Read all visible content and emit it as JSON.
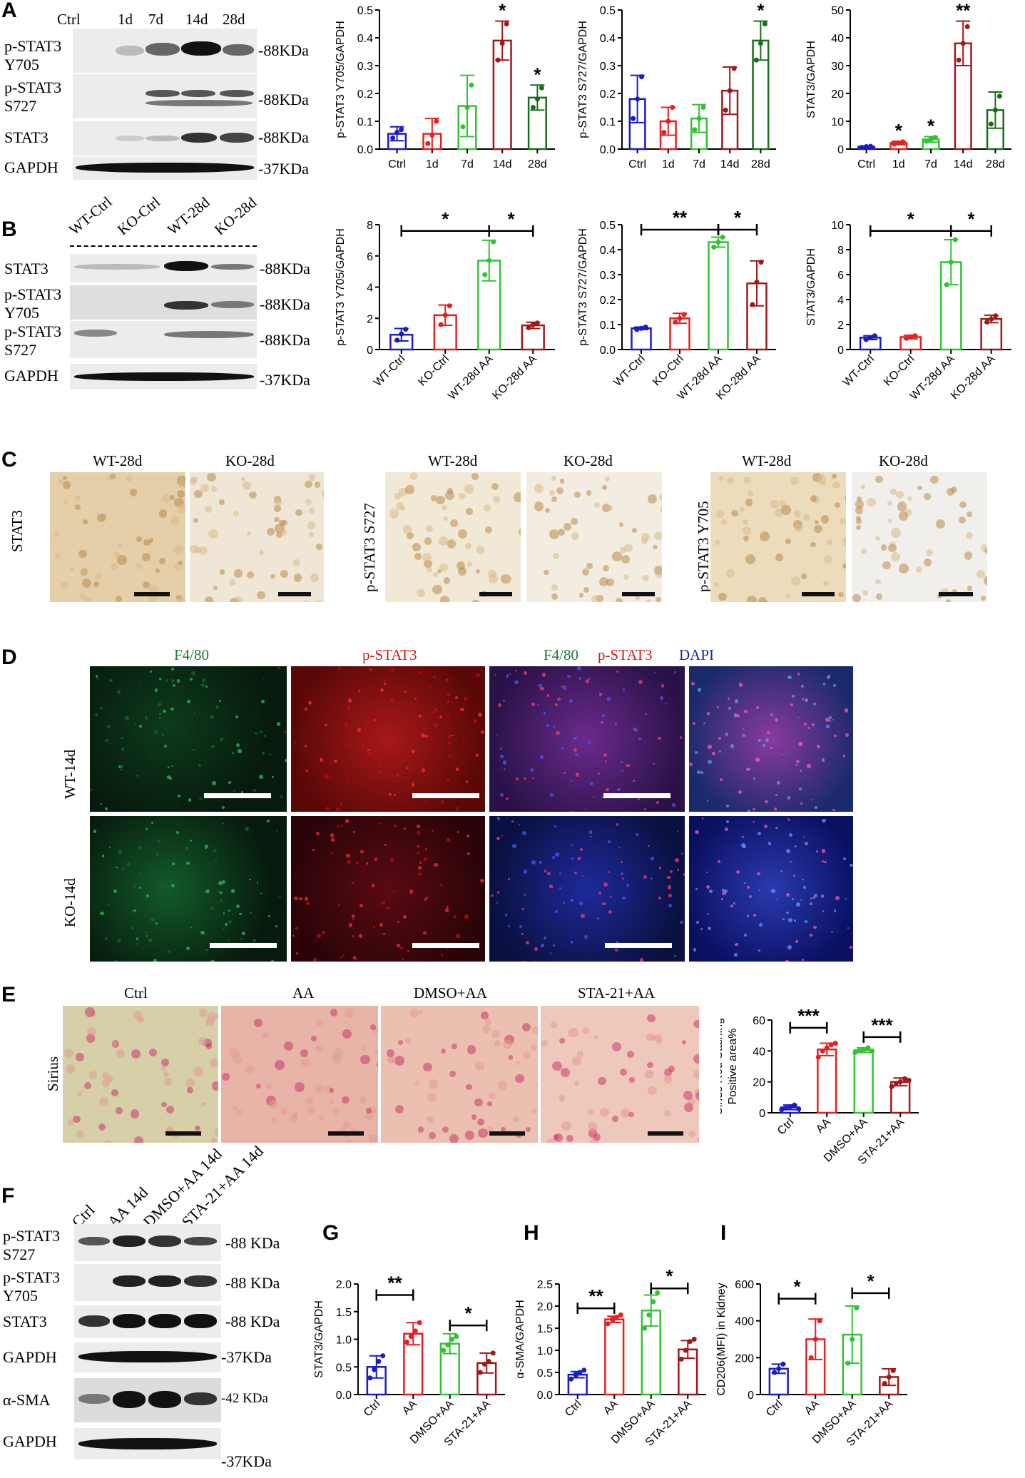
{
  "panels": {
    "A": "A",
    "B": "B",
    "C": "C",
    "D": "D",
    "E": "E",
    "F": "F",
    "G": "G",
    "H": "H",
    "I": "I"
  },
  "blotA": {
    "lanes": [
      "Ctrl",
      "1d",
      "7d",
      "14d",
      "28d"
    ],
    "rows": [
      {
        "label": "p-STAT3\nY705",
        "kda": "-88KDa"
      },
      {
        "label": "p-STAT3\nS727",
        "kda": "-88KDa"
      },
      {
        "label": "STAT3",
        "kda": "-88KDa"
      },
      {
        "label": "GAPDH",
        "kda": "-37KDa"
      }
    ]
  },
  "blotB": {
    "lanes": [
      "WT-Ctrl",
      "KO-Ctrl",
      "WT-28d",
      "KO-28d"
    ],
    "rows": [
      {
        "label": "STAT3",
        "kda": "-88KDa"
      },
      {
        "label": "p-STAT3\nY705",
        "kda": "-88KDa"
      },
      {
        "label": "p-STAT3\nS727",
        "kda": "-88KDa"
      },
      {
        "label": "GAPDH",
        "kda": "-37KDa"
      }
    ]
  },
  "blotF": {
    "lanes": [
      "Ctrl",
      "AA 14d",
      "DMSO+AA 14d",
      "STA-21+AA 14d"
    ],
    "rows": [
      {
        "label": "p-STAT3\nS727",
        "kda": "-88 KDa"
      },
      {
        "label": "p-STAT3\nY705",
        "kda": "-88 KDa"
      },
      {
        "label": "STAT3",
        "kda": "-88 KDa"
      },
      {
        "label": "GAPDH",
        "kda": "-37KDa"
      },
      {
        "label": "α-SMA",
        "kda": "-42 KDa"
      },
      {
        "label": "GAPDH",
        "kda": "-37KDa"
      }
    ]
  },
  "ihcC": {
    "groups": [
      {
        "row_label": "STAT3",
        "cols": [
          "WT-28d",
          "KO-28d"
        ]
      },
      {
        "row_label": "p-STAT3 S727",
        "cols": [
          "WT-28d",
          "KO-28d"
        ]
      },
      {
        "row_label": "p-STAT3 Y705",
        "cols": [
          "WT-28d",
          "KO-28d"
        ]
      }
    ]
  },
  "ifD": {
    "cols": {
      "c1": "F4/80",
      "c2": "p-STAT3",
      "c3a": "F4/80",
      "c3b": "p-STAT3",
      "c3c": "DAPI"
    },
    "rows": [
      "WT-14d",
      "KO-14d"
    ],
    "colors": {
      "green": "#1a7a3a",
      "red": "#d21a1a",
      "blue": "#1a2aa8"
    }
  },
  "siriusE": {
    "row_label": "Sirius",
    "cols": [
      "Ctrl",
      "AA",
      "DMSO+AA",
      "STA-21+AA"
    ]
  },
  "chart_data": [
    {
      "id": "A1",
      "type": "bar",
      "categories": [
        "Ctrl",
        "1d",
        "7d",
        "14d",
        "28d"
      ],
      "values": [
        0.055,
        0.055,
        0.155,
        0.39,
        0.185
      ],
      "err": [
        0.025,
        0.055,
        0.11,
        0.07,
        0.045
      ],
      "points": [
        [
          0.04,
          0.06,
          0.07
        ],
        [
          0.02,
          0.05,
          0.1
        ],
        [
          0.08,
          0.15,
          0.23
        ],
        [
          0.32,
          0.38,
          0.45
        ],
        [
          0.15,
          0.18,
          0.22
        ]
      ],
      "colors": [
        "#1b1bc8",
        "#e52020",
        "#33c233",
        "#a01818",
        "#1a6e1a"
      ],
      "ylabel": "p-STAT3 Y705/GAPDH",
      "ylim": [
        0,
        0.5
      ],
      "yticks": [
        0.0,
        0.1,
        0.2,
        0.3,
        0.4,
        0.5
      ],
      "ytick_labels": [
        "0.0",
        "0.1",
        "0.2",
        "0.3",
        "0.4",
        "0.5"
      ],
      "stars": [
        "",
        "",
        "",
        "*",
        "*"
      ],
      "rot": false
    },
    {
      "id": "A2",
      "type": "bar",
      "categories": [
        "Ctrl",
        "1d",
        "7d",
        "14d",
        "28d"
      ],
      "values": [
        0.18,
        0.1,
        0.11,
        0.21,
        0.39
      ],
      "err": [
        0.085,
        0.05,
        0.05,
        0.085,
        0.07
      ],
      "points": [
        [
          0.11,
          0.18,
          0.26
        ],
        [
          0.06,
          0.1,
          0.15
        ],
        [
          0.07,
          0.11,
          0.15
        ],
        [
          0.14,
          0.21,
          0.29
        ],
        [
          0.32,
          0.38,
          0.45
        ]
      ],
      "colors": [
        "#1b1bc8",
        "#e52020",
        "#33c233",
        "#a01818",
        "#1a6e1a"
      ],
      "ylabel": "p-STAT3 S727/GAPDH",
      "ylim": [
        0,
        0.5
      ],
      "yticks": [
        0.0,
        0.1,
        0.2,
        0.3,
        0.4,
        0.5
      ],
      "ytick_labels": [
        "0.0",
        "0.1",
        "0.2",
        "0.3",
        "0.4",
        "0.5"
      ],
      "stars": [
        "",
        "",
        "",
        "",
        "*"
      ],
      "rot": false
    },
    {
      "id": "A3",
      "type": "bar",
      "categories": [
        "Ctrl",
        "1d",
        "7d",
        "14d",
        "28d"
      ],
      "values": [
        0.8,
        2.2,
        3.5,
        38,
        14
      ],
      "err": [
        0.3,
        0.6,
        1.0,
        8,
        6.5
      ],
      "points": [
        [
          0.6,
          0.9,
          1.0
        ],
        [
          1.8,
          2.2,
          2.6
        ],
        [
          2.8,
          3.5,
          4.2
        ],
        [
          32,
          38,
          44
        ],
        [
          9,
          14,
          19
        ]
      ],
      "colors": [
        "#1b1bc8",
        "#e52020",
        "#33c233",
        "#a01818",
        "#1a6e1a"
      ],
      "ylabel": "STAT3/GAPDH",
      "ylim": [
        0,
        50
      ],
      "yticks": [
        0,
        10,
        20,
        30,
        40,
        50
      ],
      "ytick_labels": [
        "0",
        "10",
        "20",
        "30",
        "40",
        "50"
      ],
      "stars": [
        "",
        "*",
        "*",
        "**",
        ""
      ],
      "rot": false
    },
    {
      "id": "B1",
      "type": "bar",
      "categories": [
        "WT-Ctrl",
        "KO-Ctrl",
        "WT-28d AA",
        "KO-28d AA"
      ],
      "values": [
        0.95,
        2.2,
        5.7,
        1.55
      ],
      "err": [
        0.4,
        0.65,
        1.3,
        0.2
      ],
      "points": [
        [
          0.6,
          1.0,
          1.3
        ],
        [
          1.6,
          2.2,
          2.8
        ],
        [
          4.8,
          5.7,
          6.9
        ],
        [
          1.4,
          1.6,
          1.7
        ]
      ],
      "colors": [
        "#1b1bc8",
        "#e52020",
        "#33c233",
        "#a01818"
      ],
      "ylabel": "p-STAT3 Y705/GAPDH",
      "ylim": [
        0,
        8
      ],
      "yticks": [
        0,
        2,
        4,
        6,
        8
      ],
      "ytick_labels": [
        "0",
        "2",
        "4",
        "6",
        "8"
      ],
      "stars": [],
      "brackets": [
        {
          "from": 0,
          "to": 2,
          "label": "*",
          "y": 7.6
        },
        {
          "from": 2,
          "to": 3,
          "label": "*",
          "y": 7.6
        }
      ],
      "rot": true
    },
    {
      "id": "B2",
      "type": "bar",
      "categories": [
        "WT-Ctrl",
        "KO-Ctrl",
        "WT-28d AA",
        "KO-28d AA"
      ],
      "values": [
        0.085,
        0.125,
        0.43,
        0.265
      ],
      "err": [
        0.005,
        0.02,
        0.02,
        0.09
      ],
      "points": [
        [
          0.08,
          0.085,
          0.09
        ],
        [
          0.11,
          0.125,
          0.14
        ],
        [
          0.41,
          0.43,
          0.45
        ],
        [
          0.18,
          0.27,
          0.35
        ]
      ],
      "colors": [
        "#1b1bc8",
        "#e52020",
        "#33c233",
        "#a01818"
      ],
      "ylabel": "p-STAT3 S727/GAPDH",
      "ylim": [
        0,
        0.5
      ],
      "yticks": [
        0.0,
        0.1,
        0.2,
        0.3,
        0.4,
        0.5
      ],
      "ytick_labels": [
        "0.0",
        "0.1",
        "0.2",
        "0.3",
        "0.4",
        "0.5"
      ],
      "stars": [],
      "brackets": [
        {
          "from": 0,
          "to": 2,
          "label": "**",
          "y": 0.48
        },
        {
          "from": 2,
          "to": 3,
          "label": "*",
          "y": 0.48
        }
      ],
      "rot": true
    },
    {
      "id": "B3",
      "type": "bar",
      "categories": [
        "WT-Ctrl",
        "KO-Ctrl",
        "WT-28d AA",
        "KO-28d AA"
      ],
      "values": [
        0.95,
        1.0,
        7.0,
        2.45
      ],
      "err": [
        0.15,
        0.15,
        1.8,
        0.3
      ],
      "points": [
        [
          0.8,
          0.95,
          1.1
        ],
        [
          0.9,
          1.0,
          1.1
        ],
        [
          5.2,
          7.0,
          8.8
        ],
        [
          2.2,
          2.45,
          2.7
        ]
      ],
      "colors": [
        "#1b1bc8",
        "#e52020",
        "#33c233",
        "#a01818"
      ],
      "ylabel": "STAT3/GAPDH",
      "ylim": [
        0,
        10
      ],
      "yticks": [
        0,
        2,
        4,
        6,
        8,
        10
      ],
      "ytick_labels": [
        "0",
        "2",
        "4",
        "6",
        "8",
        "10"
      ],
      "stars": [],
      "brackets": [
        {
          "from": 0,
          "to": 2,
          "label": "*",
          "y": 9.5
        },
        {
          "from": 2,
          "to": 3,
          "label": "*",
          "y": 9.5
        }
      ],
      "rot": true
    },
    {
      "id": "E",
      "type": "bar",
      "categories": [
        "Ctrl",
        "AA",
        "DMSO+AA",
        "STA-21+AA"
      ],
      "values": [
        3.5,
        41,
        40.5,
        20
      ],
      "err": [
        1.5,
        4,
        1.5,
        2.5
      ],
      "points": [
        [
          2,
          3,
          4,
          5,
          2.5
        ],
        [
          36,
          40,
          42,
          44,
          45
        ],
        [
          39,
          40,
          41,
          42,
          40
        ],
        [
          17,
          19,
          20,
          22,
          21
        ]
      ],
      "colors": [
        "#1b1bc8",
        "#e52020",
        "#33c233",
        "#a01818"
      ],
      "ylabel": "Sirius Red Staining\nPositive area%",
      "ylim": [
        0,
        60
      ],
      "yticks": [
        0,
        20,
        40,
        60
      ],
      "ytick_labels": [
        "0",
        "20",
        "40",
        "60"
      ],
      "stars": [],
      "brackets": [
        {
          "from": 0,
          "to": 1,
          "label": "***",
          "y": 55
        },
        {
          "from": 2,
          "to": 3,
          "label": "***",
          "y": 49
        }
      ],
      "rot": true
    },
    {
      "id": "G",
      "type": "bar",
      "categories": [
        "Ctrl",
        "AA",
        "DMSO+AA",
        "STA-21+AA"
      ],
      "values": [
        0.5,
        1.1,
        0.92,
        0.57
      ],
      "err": [
        0.2,
        0.2,
        0.18,
        0.18
      ],
      "points": [
        [
          0.3,
          0.45,
          0.6,
          0.7
        ],
        [
          0.95,
          1.05,
          1.15,
          1.3
        ],
        [
          0.8,
          0.9,
          1.0,
          1.05
        ],
        [
          0.4,
          0.55,
          0.6,
          0.75
        ]
      ],
      "colors": [
        "#1b1bc8",
        "#e52020",
        "#33c233",
        "#a01818"
      ],
      "ylabel": "STAT3/GAPDH",
      "ylim": [
        0,
        2.0
      ],
      "yticks": [
        0.0,
        0.5,
        1.0,
        1.5,
        2.0
      ],
      "ytick_labels": [
        "0.0",
        "0.5",
        "1.0",
        "1.5",
        "2.0"
      ],
      "stars": [],
      "brackets": [
        {
          "from": 0,
          "to": 1,
          "label": "**",
          "y": 1.8
        },
        {
          "from": 2,
          "to": 3,
          "label": "*",
          "y": 1.25
        }
      ],
      "rot": true
    },
    {
      "id": "H",
      "type": "bar",
      "categories": [
        "Ctrl",
        "AA",
        "DMSO+AA",
        "STA-21+AA"
      ],
      "values": [
        0.45,
        1.7,
        1.9,
        1.02
      ],
      "err": [
        0.07,
        0.07,
        0.35,
        0.2
      ],
      "points": [
        [
          0.35,
          0.45,
          0.5,
          0.55
        ],
        [
          1.6,
          1.7,
          1.75,
          1.8
        ],
        [
          1.5,
          1.8,
          2.1,
          2.3
        ],
        [
          0.8,
          1.0,
          1.2,
          1.25
        ]
      ],
      "colors": [
        "#1b1bc8",
        "#e52020",
        "#33c233",
        "#a01818"
      ],
      "ylabel": "α-SMA/GAPDH",
      "ylim": [
        0,
        2.5
      ],
      "yticks": [
        0.0,
        0.5,
        1.0,
        1.5,
        2.0,
        2.5
      ],
      "ytick_labels": [
        "0.0",
        "0.5",
        "1.0",
        "1.5",
        "2.0",
        "2.5"
      ],
      "stars": [],
      "brackets": [
        {
          "from": 0,
          "to": 1,
          "label": "**",
          "y": 1.95
        },
        {
          "from": 2,
          "to": 3,
          "label": "*",
          "y": 2.4
        }
      ],
      "rot": true
    },
    {
      "id": "I",
      "type": "bar",
      "categories": [
        "Ctrl",
        "AA",
        "DMSO+AA",
        "STA-21+AA"
      ],
      "values": [
        140,
        300,
        325,
        95
      ],
      "err": [
        25,
        110,
        155,
        45
      ],
      "points": [
        [
          120,
          140,
          165
        ],
        [
          200,
          300,
          400
        ],
        [
          170,
          300,
          470
        ],
        [
          60,
          95,
          130
        ]
      ],
      "colors": [
        "#1b1bc8",
        "#e52020",
        "#33c233",
        "#a01818"
      ],
      "ylabel": "CD206(MFI) in Kidney",
      "ylim": [
        0,
        600
      ],
      "yticks": [
        0,
        200,
        400,
        600
      ],
      "ytick_labels": [
        "0",
        "200",
        "400",
        "600"
      ],
      "stars": [],
      "brackets": [
        {
          "from": 0,
          "to": 1,
          "label": "*",
          "y": 520
        },
        {
          "from": 2,
          "to": 3,
          "label": "*",
          "y": 550
        }
      ],
      "rot": true
    }
  ]
}
